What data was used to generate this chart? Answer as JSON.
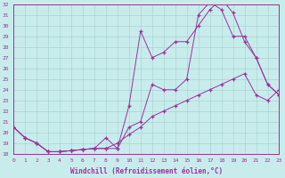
{
  "xlabel": "Windchill (Refroidissement éolien,°C)",
  "bg_color": "#c8ecec",
  "grid_color": "#aad4d4",
  "line_color": "#993399",
  "xlim": [
    0,
    23
  ],
  "ylim": [
    18,
    32
  ],
  "xticks": [
    0,
    1,
    2,
    3,
    4,
    5,
    6,
    7,
    8,
    9,
    10,
    11,
    12,
    13,
    14,
    15,
    16,
    17,
    18,
    19,
    20,
    21,
    22,
    23
  ],
  "yticks": [
    18,
    19,
    20,
    21,
    22,
    23,
    24,
    25,
    26,
    27,
    28,
    29,
    30,
    31,
    32
  ],
  "line1_x": [
    0,
    1,
    2,
    3,
    4,
    5,
    6,
    7,
    8,
    9,
    10,
    11,
    12,
    13,
    14,
    15,
    16,
    17,
    18,
    19,
    20,
    21,
    22,
    23
  ],
  "line1_y": [
    20.5,
    19.5,
    19.0,
    18.2,
    18.2,
    18.3,
    18.4,
    18.5,
    18.5,
    18.5,
    20.5,
    21.0,
    24.5,
    24.0,
    24.0,
    25.0,
    31.0,
    32.2,
    31.5,
    29.0,
    29.0,
    27.0,
    24.5,
    23.5
  ],
  "line2_x": [
    0,
    1,
    2,
    3,
    4,
    5,
    6,
    7,
    8,
    9,
    10,
    11,
    12,
    13,
    14,
    15,
    16,
    17,
    18,
    19,
    20,
    21,
    22,
    23
  ],
  "line2_y": [
    20.5,
    19.5,
    19.0,
    18.2,
    18.2,
    18.3,
    18.4,
    18.5,
    19.5,
    18.5,
    22.5,
    29.5,
    27.0,
    27.5,
    28.5,
    28.5,
    30.0,
    31.5,
    32.5,
    31.2,
    28.5,
    27.0,
    24.5,
    23.5
  ],
  "line3_x": [
    0,
    1,
    2,
    3,
    4,
    5,
    6,
    7,
    8,
    9,
    10,
    11,
    12,
    13,
    14,
    15,
    16,
    17,
    18,
    19,
    20,
    21,
    22,
    23
  ],
  "line3_y": [
    20.5,
    19.5,
    19.0,
    18.2,
    18.2,
    18.3,
    18.4,
    18.5,
    18.5,
    19.0,
    19.8,
    20.5,
    21.5,
    22.0,
    22.5,
    23.0,
    23.5,
    24.0,
    24.5,
    25.0,
    25.5,
    23.5,
    23.0,
    24.0
  ]
}
